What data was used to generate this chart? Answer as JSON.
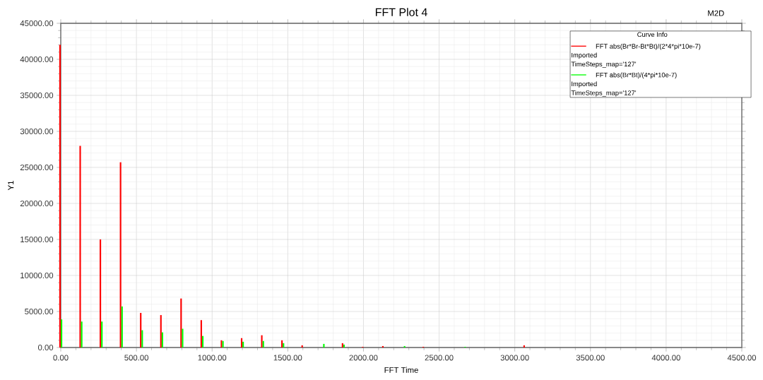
{
  "chart_data": {
    "type": "bar",
    "title": "FFT  Plot 4",
    "xlabel": "FFT Time",
    "ylabel": "Y1",
    "legend_title": "Curve Info",
    "annotations": [
      "M2D",
      "Imported",
      "TimeSteps_map='127'",
      "Imported",
      "TimeSteps_map='127'"
    ],
    "x": [
      0,
      133.33,
      266.67,
      400,
      533.33,
      666.67,
      800,
      933.33,
      1066.67,
      1200,
      1333.33,
      1466.67,
      1600,
      1733.33,
      1866.67,
      2000,
      2133.33,
      2266.67,
      2400,
      2666.67,
      3066.67
    ],
    "series": [
      {
        "name": "FFT abs(Br*Br-Bt*Bt)/(2*4*pi*10e-7)",
        "color": "#ff0000",
        "values": [
          42000,
          28000,
          15000,
          25700,
          4800,
          4500,
          6800,
          3800,
          1000,
          1300,
          1700,
          1000,
          300,
          null,
          600,
          100,
          200,
          null,
          100,
          null,
          300
        ]
      },
      {
        "name": "FFT abs(Br*Bt)/(4*pi*10e-7)",
        "color": "#00ff00",
        "values": [
          3900,
          3600,
          3600,
          5700,
          2400,
          2100,
          2600,
          1600,
          900,
          800,
          900,
          600,
          null,
          500,
          400,
          null,
          null,
          200,
          null,
          100,
          null
        ]
      }
    ],
    "xlim": [
      0,
      4500
    ],
    "ylim": [
      0,
      45000
    ],
    "xticks": [
      {
        "value": 0,
        "label": "0.00"
      },
      {
        "value": 500,
        "label": "500.00"
      },
      {
        "value": 1000,
        "label": "1000.00"
      },
      {
        "value": 1500,
        "label": "1500.00"
      },
      {
        "value": 2000,
        "label": "2000.00"
      },
      {
        "value": 2500,
        "label": "2500.00"
      },
      {
        "value": 3000,
        "label": "3000.00"
      },
      {
        "value": 3500,
        "label": "3500.00"
      },
      {
        "value": 4000,
        "label": "4000.00"
      },
      {
        "value": 4500,
        "label": "4500.00"
      }
    ],
    "yticks": [
      {
        "value": 0,
        "label": "0.00"
      },
      {
        "value": 5000,
        "label": "5000.00"
      },
      {
        "value": 10000,
        "label": "10000.00"
      },
      {
        "value": 15000,
        "label": "15000.00"
      },
      {
        "value": 20000,
        "label": "20000.00"
      },
      {
        "value": 25000,
        "label": "25000.00"
      },
      {
        "value": 30000,
        "label": "30000.00"
      },
      {
        "value": 35000,
        "label": "35000.00"
      },
      {
        "value": 40000,
        "label": "40000.00"
      },
      {
        "value": 45000,
        "label": "45000.00"
      }
    ],
    "grid": true,
    "legend": "top right"
  }
}
